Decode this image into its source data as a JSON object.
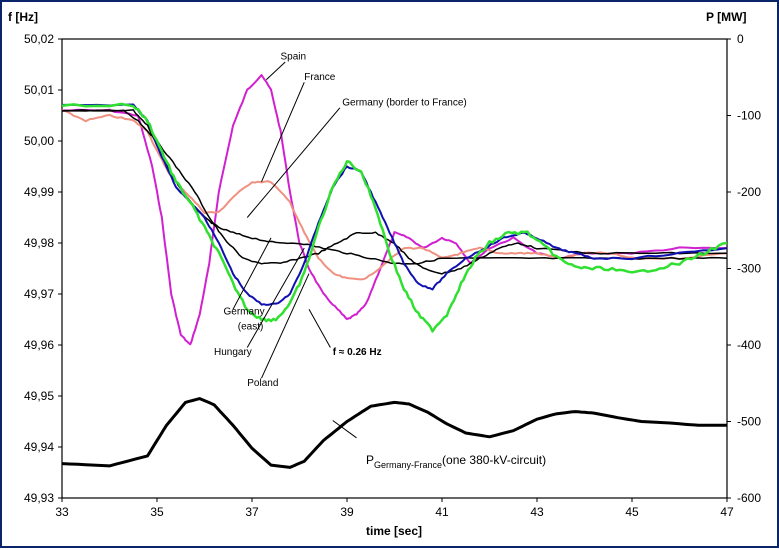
{
  "chart_data": {
    "type": "line",
    "xlabel": "time [sec]",
    "ylabel_left": "f [Hz]",
    "ylabel_right": "P [MW]",
    "xlim": [
      33,
      47
    ],
    "ylim_left": [
      49.93,
      50.02
    ],
    "ylim_right": [
      -600,
      0
    ],
    "x_ticks": [
      "33",
      "35",
      "37",
      "39",
      "41",
      "43",
      "45",
      "47"
    ],
    "y_ticks_left": [
      "50,02",
      "50,01",
      "50,00",
      "49,99",
      "49,98",
      "49,97",
      "49,96",
      "49,95",
      "49,94",
      "49,93"
    ],
    "y_ticks_right": [
      "0",
      "-100",
      "-200",
      "-300",
      "-400",
      "-500",
      "-600"
    ],
    "grid": false,
    "series": [
      {
        "name": "Spain",
        "axis": "left",
        "color": "#d020d0",
        "width": 2,
        "x": [
          33,
          34,
          34.6,
          34.9,
          35.1,
          35.3,
          35.5,
          35.7,
          35.9,
          36.1,
          36.3,
          36.6,
          36.9,
          37.2,
          37.4,
          37.6,
          37.8,
          38.0,
          38.2,
          38.5,
          38.8,
          39.0,
          39.2,
          39.4,
          39.7,
          40.0,
          40.3,
          40.6,
          41.0,
          41.3,
          41.6,
          42.0,
          42.5,
          43.0,
          43.5,
          44,
          45,
          46,
          47
        ],
        "y": [
          50.006,
          50.006,
          50.005,
          49.995,
          49.985,
          49.97,
          49.962,
          49.96,
          49.966,
          49.976,
          49.99,
          50.003,
          50.01,
          50.013,
          50.01,
          50.002,
          49.99,
          49.98,
          49.975,
          49.97,
          49.967,
          49.965,
          49.966,
          49.968,
          49.975,
          49.982,
          49.981,
          49.979,
          49.981,
          49.98,
          49.976,
          49.979,
          49.981,
          49.978,
          49.977,
          49.978,
          49.978,
          49.979,
          49.979
        ]
      },
      {
        "name": "France",
        "axis": "left",
        "color": "#f09080",
        "width": 2,
        "x": [
          33,
          33.5,
          34,
          34.5,
          34.8,
          35.0,
          35.3,
          35.6,
          36.0,
          36.3,
          36.6,
          37.0,
          37.4,
          37.8,
          38.1,
          38.4,
          38.7,
          39.0,
          39.4,
          39.8,
          40.2,
          40.6,
          41.0,
          41.4,
          41.8,
          42.2,
          42.6,
          43.0,
          43.5,
          44,
          44.5,
          45,
          46,
          47
        ],
        "y": [
          50.006,
          50.004,
          50.005,
          50.004,
          50.002,
          49.998,
          49.993,
          49.99,
          49.986,
          49.986,
          49.989,
          49.992,
          49.992,
          49.988,
          49.982,
          49.977,
          49.974,
          49.973,
          49.973,
          49.976,
          49.979,
          49.979,
          49.977,
          49.978,
          49.979,
          49.978,
          49.978,
          49.978,
          49.977,
          49.978,
          49.978,
          49.977,
          49.977,
          49.978
        ]
      },
      {
        "name": "Germany (border to France)",
        "axis": "left",
        "color": "#000000",
        "width": 1.5,
        "x": [
          33,
          34.5,
          34.8,
          35.1,
          35.4,
          35.7,
          36.0,
          36.3,
          36.6,
          37.0,
          37.5,
          38.0,
          38.5,
          39.0,
          39.5,
          40.0,
          40.5,
          41.0,
          42,
          43,
          44,
          45,
          46,
          47
        ],
        "y": [
          50.006,
          50.006,
          50.003,
          49.997,
          49.992,
          49.988,
          49.985,
          49.983,
          49.982,
          49.981,
          49.98,
          49.98,
          49.979,
          49.978,
          49.977,
          49.976,
          49.976,
          49.977,
          49.977,
          49.977,
          49.977,
          49.977,
          49.977,
          49.977
        ]
      },
      {
        "name": "Germany (east)",
        "axis": "left",
        "color": "#000000",
        "width": 1.5,
        "x": [
          33,
          34.3,
          34.6,
          35.0,
          35.4,
          35.8,
          36.1,
          36.4,
          36.8,
          37.2,
          37.6,
          38.0,
          38.4,
          38.8,
          39.2,
          39.6,
          40.0,
          40.3,
          40.6,
          41.0,
          41.4,
          41.8,
          42.2,
          42.6,
          43.0,
          44,
          45,
          46,
          47
        ],
        "y": [
          50.006,
          50.006,
          50.004,
          50.0,
          49.995,
          49.99,
          49.985,
          49.981,
          49.977,
          49.976,
          49.976,
          49.977,
          49.978,
          49.98,
          49.982,
          49.982,
          49.98,
          49.977,
          49.975,
          49.974,
          49.975,
          49.977,
          49.979,
          49.98,
          49.979,
          49.978,
          49.978,
          49.978,
          49.978
        ]
      },
      {
        "name": "Hungary",
        "axis": "left",
        "color": "#1010b0",
        "width": 2,
        "x": [
          33,
          34.5,
          34.8,
          35.1,
          35.4,
          35.7,
          36.0,
          36.3,
          36.6,
          36.9,
          37.2,
          37.5,
          37.8,
          38.1,
          38.4,
          38.7,
          39.0,
          39.3,
          39.6,
          39.9,
          40.2,
          40.5,
          40.8,
          41.1,
          41.5,
          41.9,
          42.3,
          42.7,
          43.0,
          43.4,
          43.8,
          44.2,
          45,
          46,
          47
        ],
        "y": [
          50.007,
          50.007,
          50.004,
          49.997,
          49.991,
          49.988,
          49.985,
          49.98,
          49.974,
          49.97,
          49.968,
          49.968,
          49.97,
          49.976,
          49.984,
          49.991,
          49.995,
          49.994,
          49.988,
          49.982,
          49.976,
          49.972,
          49.971,
          49.974,
          49.977,
          49.979,
          49.981,
          49.982,
          49.981,
          49.979,
          49.978,
          49.977,
          49.977,
          49.978,
          49.979
        ]
      },
      {
        "name": "Poland",
        "axis": "left",
        "color": "#30e030",
        "width": 2.5,
        "x": [
          33,
          34.5,
          34.8,
          35.1,
          35.4,
          35.7,
          36.0,
          36.3,
          36.6,
          36.9,
          37.2,
          37.5,
          37.8,
          38.1,
          38.4,
          38.7,
          39.0,
          39.3,
          39.6,
          39.9,
          40.2,
          40.5,
          40.8,
          41.1,
          41.4,
          41.7,
          42.0,
          42.4,
          42.8,
          43.2,
          43.6,
          44.0,
          44.5,
          45.0,
          45.5,
          46.0,
          46.5,
          47.0
        ],
        "y": [
          50.007,
          50.007,
          50.004,
          49.998,
          49.992,
          49.988,
          49.983,
          49.978,
          49.972,
          49.967,
          49.965,
          49.965,
          49.968,
          49.974,
          49.983,
          49.991,
          49.996,
          49.994,
          49.987,
          49.978,
          49.971,
          49.966,
          49.963,
          49.966,
          49.972,
          49.977,
          49.98,
          49.982,
          49.982,
          49.979,
          49.976,
          49.975,
          49.975,
          49.974,
          49.975,
          49.976,
          49.978,
          49.98
        ]
      },
      {
        "name": "PGermany-France(one 380-kV-circuit)",
        "axis": "right",
        "color": "#000000",
        "width": 3,
        "x": [
          33,
          34.0,
          34.8,
          35.2,
          35.6,
          35.9,
          36.2,
          36.6,
          37.0,
          37.4,
          37.8,
          38.1,
          38.5,
          39.0,
          39.5,
          40.0,
          40.3,
          40.7,
          41.1,
          41.5,
          42.0,
          42.5,
          43.0,
          43.4,
          43.8,
          44.2,
          44.7,
          45.2,
          45.8,
          46.4,
          47.0
        ],
        "y": [
          -555,
          -558,
          -545,
          -505,
          -475,
          -470,
          -478,
          -505,
          -535,
          -557,
          -560,
          -552,
          -525,
          -500,
          -480,
          -475,
          -477,
          -488,
          -503,
          -515,
          -520,
          -512,
          -497,
          -490,
          -487,
          -489,
          -495,
          -500,
          -502,
          -505,
          -505
        ]
      }
    ],
    "annotations": [
      {
        "text": "Spain",
        "x": 37.6,
        "y": 50.016
      },
      {
        "text": "France",
        "x": 38.1,
        "y": 50.012
      },
      {
        "text": "Germany (border to France)",
        "x": 38.9,
        "y": 50.007
      },
      {
        "text": "Germany",
        "x": 36.4,
        "y": 49.966
      },
      {
        "text": "(east)",
        "x": 36.7,
        "y": 49.963
      },
      {
        "text": "Hungary",
        "x": 36.2,
        "y": 49.958
      },
      {
        "text": "Poland",
        "x": 36.9,
        "y": 49.952
      },
      {
        "text": "f ≈ 0.26 Hz",
        "x": 38.7,
        "y": 49.958
      }
    ],
    "legend_label": {
      "main": "P",
      "sub": "Germany-France",
      "suffix": "(one 380-kV-circuit)"
    }
  }
}
